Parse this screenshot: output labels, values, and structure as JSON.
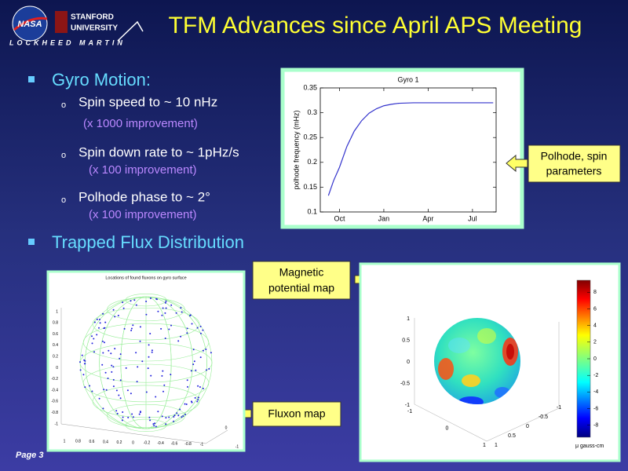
{
  "header": {
    "title": "TFM Advances since April APS Meeting",
    "logos": {
      "nasa": "NASA",
      "stanford": [
        "STANFORD",
        "UNIVERSITY"
      ],
      "lockheed": "LOCKHEED MARTIN"
    }
  },
  "bullets": [
    {
      "text": "Gyro Motion:",
      "items": [
        {
          "text": "Spin speed to ~ 10 nHz",
          "note": "(x 1000 improvement)"
        },
        {
          "text": "Spin down rate to ~ 1pHz/s",
          "note": "(x 100 improvement)"
        },
        {
          "text": "Polhode phase to ~ 2°",
          "note": "(x 100 improvement)"
        }
      ]
    },
    {
      "text": "Trapped Flux Distribution",
      "items": []
    }
  ],
  "chart_data": {
    "type": "line",
    "title": "Gyro 1",
    "y_label": "polhode frequency (mHz)",
    "x": [
      -0.75,
      -0.4,
      0,
      0.5,
      1,
      1.5,
      2,
      2.5,
      3,
      3.5,
      4,
      5,
      6,
      7,
      8,
      9,
      10.4
    ],
    "values": [
      0.133,
      0.163,
      0.19,
      0.232,
      0.263,
      0.284,
      0.299,
      0.308,
      0.314,
      0.317,
      0.319,
      0.32,
      0.32,
      0.32,
      0.32,
      0.32,
      0.32
    ],
    "color": "#3333cc",
    "xlim": [
      -1.3,
      10.6
    ],
    "xticks": [
      {
        "value": 0,
        "label": "Oct"
      },
      {
        "value": 3,
        "label": "Jan"
      },
      {
        "value": 6,
        "label": "Apr"
      },
      {
        "value": 9,
        "label": "Jul"
      }
    ],
    "ylim": [
      0.1,
      0.35
    ],
    "yticks": [
      0.1,
      0.15,
      0.2,
      0.25,
      0.3,
      0.35
    ],
    "grid": false
  },
  "callouts": {
    "polhode": [
      "Polhode, spin",
      "parameters"
    ],
    "magnetic": [
      "Magnetic",
      "potential map"
    ],
    "fluxon": [
      "Fluxon map"
    ]
  },
  "fluxon_map": {
    "title": "Locations of found fluxons on gyro surface",
    "z_ticks": [
      1,
      0.8,
      0.6,
      0.4,
      0.2,
      0,
      -0.2,
      -0.4,
      -0.6,
      -0.8,
      -1
    ],
    "x_ticks": [
      1,
      0.8,
      0.6,
      0.4,
      0.2,
      0,
      -0.2,
      -0.4,
      -0.6,
      -0.8,
      -1
    ],
    "y_ticks": [
      0,
      -1
    ]
  },
  "magnetic_map": {
    "z_ticks": [
      1,
      0.5,
      0,
      -0.5,
      -1
    ],
    "x_ticks": [
      -1,
      0,
      1
    ],
    "y_ticks": [
      -1,
      -0.5,
      0,
      0.5,
      1
    ],
    "colorbar_ticks": [
      8,
      6,
      4,
      2,
      0,
      -2,
      -4,
      -6,
      -8
    ],
    "colorbar_label": "μ gauss-cm"
  },
  "footer": {
    "page": "Page 3"
  }
}
